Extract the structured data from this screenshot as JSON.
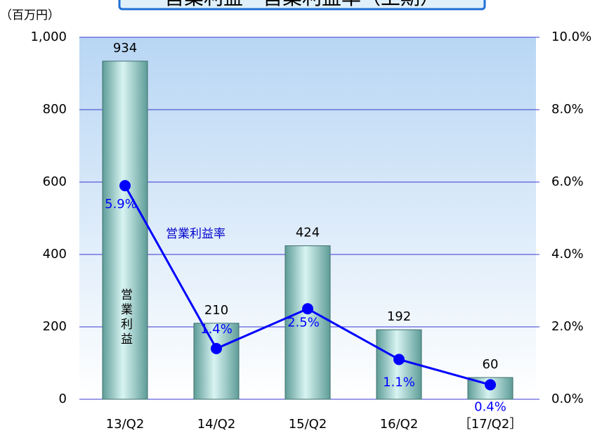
{
  "chart_data": {
    "type": "bar",
    "title": "営業利益・営業利益率（上期）",
    "y_label": "（百万円）",
    "categories": [
      "13/Q2",
      "14/Q2",
      "15/Q2",
      "16/Q2",
      "［17/Q2］"
    ],
    "series": [
      {
        "name": "営業利益",
        "color": "#8fcfcb",
        "values": [
          934,
          210,
          424,
          192,
          60
        ]
      },
      {
        "name": "営業利益率",
        "type": "line",
        "axis": "y2",
        "color": "#0000ff",
        "values": [
          5.9,
          1.4,
          2.5,
          1.1,
          0.4
        ],
        "value_labels": [
          "5.9%",
          "1.4%",
          "2.5%",
          "1.1%",
          "0.4%"
        ]
      }
    ],
    "ylim": [
      0,
      1000
    ],
    "yticks": [
      0,
      200,
      400,
      600,
      800,
      {
        "value": 1000,
        "label": "1,000"
      }
    ],
    "y2lim": [
      0,
      10
    ],
    "y2ticks": [
      {
        "value": 0,
        "label": "0.0%"
      },
      {
        "value": 2,
        "label": "2.0%"
      },
      {
        "value": 4,
        "label": "4.0%"
      },
      {
        "value": 6,
        "label": "6.0%"
      },
      {
        "value": 8,
        "label": "8.0%"
      },
      {
        "value": 10,
        "label": "10.0%"
      }
    ],
    "grid": true
  }
}
